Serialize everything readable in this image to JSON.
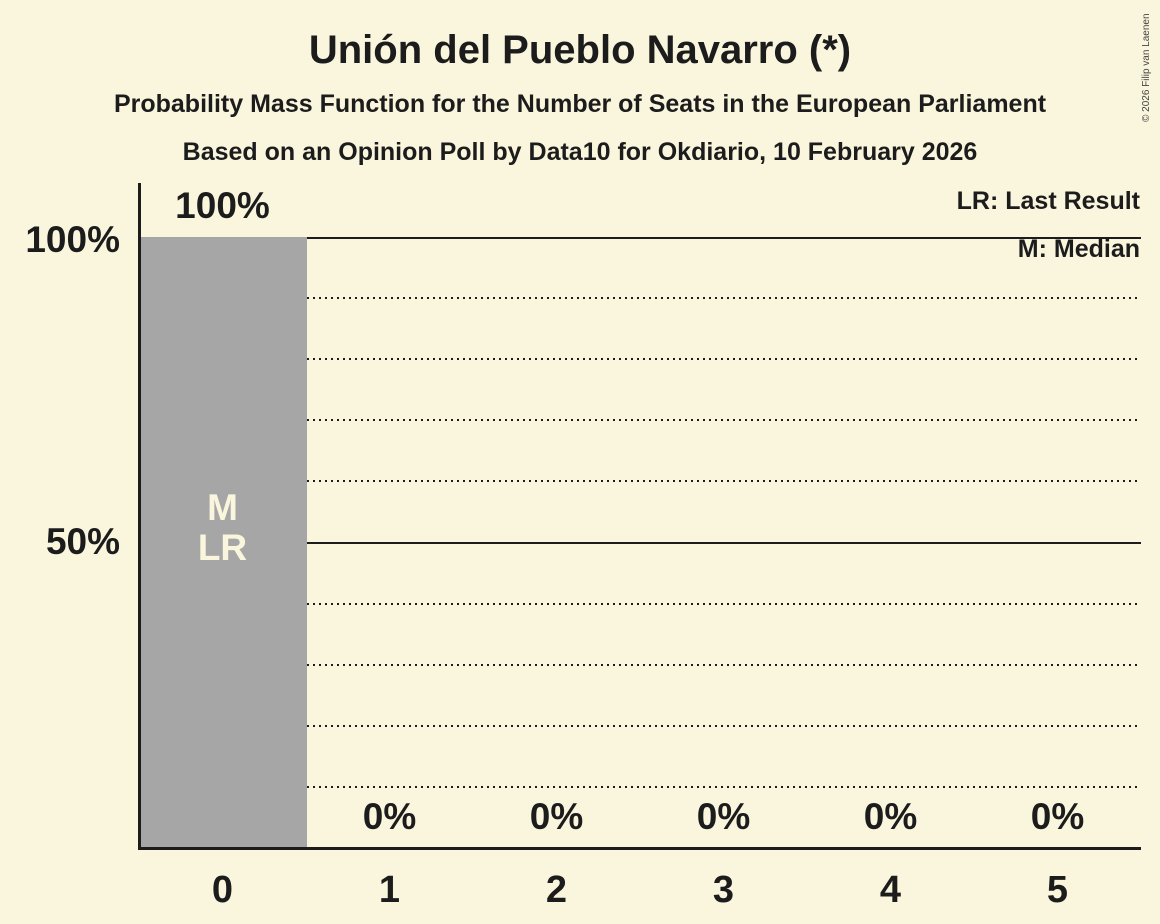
{
  "chart_data": {
    "type": "bar",
    "title": "Unión del Pueblo Navarro (*)",
    "subtitle": "Probability Mass Function for the Number of Seats in the European Parliament",
    "source_line": "Based on an Opinion Poll by Data10 for Okdiario, 10 February 2026",
    "copyright": "© 2026 Filip van Laenen",
    "categories": [
      "0",
      "1",
      "2",
      "3",
      "4",
      "5"
    ],
    "values": [
      100,
      0,
      0,
      0,
      0,
      0
    ],
    "bar_labels": [
      "100%",
      "0%",
      "0%",
      "0%",
      "0%",
      "0%"
    ],
    "ylim": [
      0,
      100
    ],
    "ytick_labels": [
      "100%",
      "50%"
    ],
    "gridlines": {
      "solid_percents": [
        100,
        50
      ],
      "dotted_percents": [
        90,
        80,
        70,
        60,
        40,
        30,
        20,
        10
      ]
    },
    "legend": [
      "LR: Last Result",
      "M: Median"
    ],
    "annotations": [
      {
        "category": "0",
        "lines": [
          "M",
          "LR"
        ]
      }
    ],
    "colors": {
      "background": "#FAF6DD",
      "bar": "#A6A6A6",
      "text": "#1C1C1C",
      "annotation_text": "#FAF6DD"
    }
  }
}
